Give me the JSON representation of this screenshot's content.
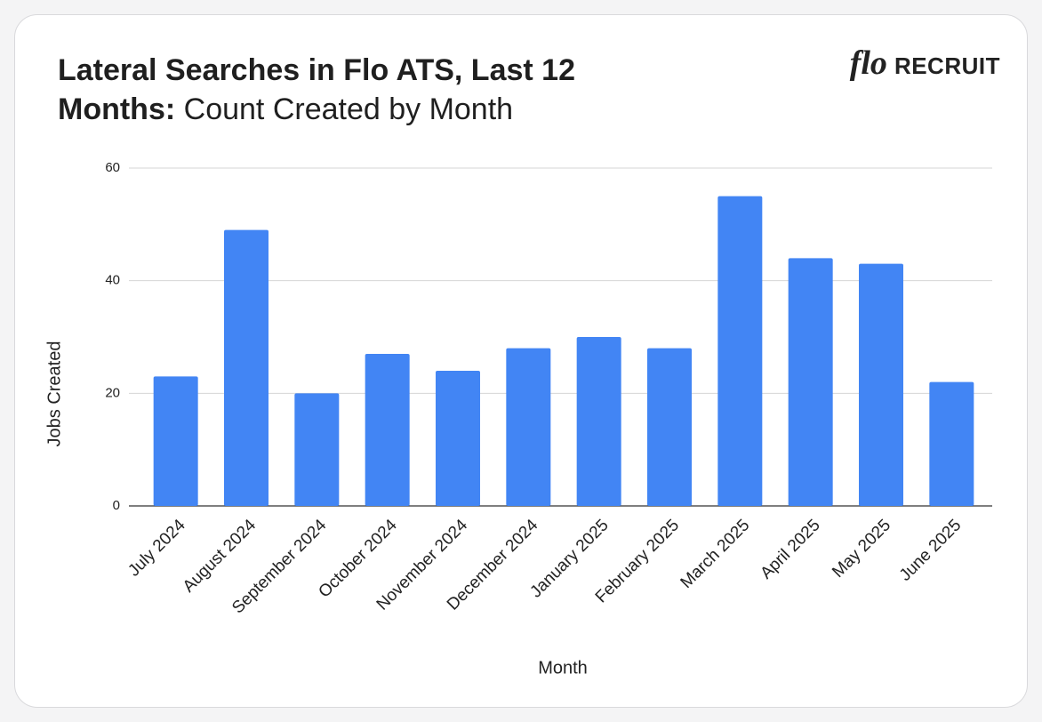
{
  "logo": {
    "mark": "flo",
    "text": "RECRUIT"
  },
  "chart_data": {
    "type": "bar",
    "title": "Lateral Searches in Flo ATS, Last 12 Months:",
    "subtitle": "Count Created by Month",
    "x_label": "Month",
    "y_label": "Jobs Created",
    "categories": [
      "July 2024",
      "August 2024",
      "September 2024",
      "October 2024",
      "November 2024",
      "December 2024",
      "January 2025",
      "February 2025",
      "March 2025",
      "April 2025",
      "May 2025",
      "June 2025"
    ],
    "values": [
      23,
      49,
      20,
      27,
      24,
      28,
      30,
      28,
      55,
      44,
      43,
      22
    ],
    "color": "#4285f4",
    "ylim": [
      0,
      60
    ],
    "yticks": [
      0,
      20,
      40,
      60
    ],
    "grid": true
  }
}
